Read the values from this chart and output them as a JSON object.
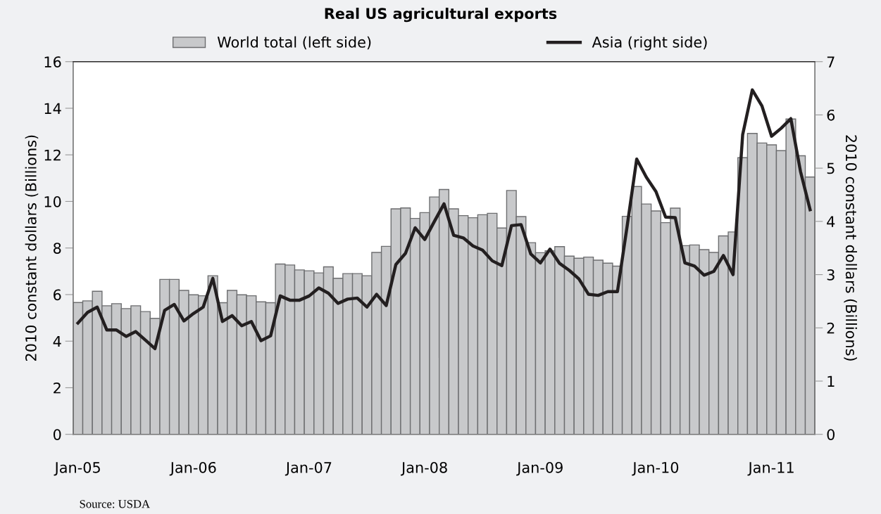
{
  "chart_data": {
    "type": "bar",
    "title": "Real US agricultural exports",
    "ylabel": "2010 constant dollars (Billions)",
    "y2label": "2010 constant dollars (Billions)",
    "annotations": [
      "Source: USDA"
    ],
    "categories": [
      "Jan-05",
      null,
      null,
      null,
      null,
      null,
      null,
      null,
      null,
      null,
      null,
      null,
      "Jan-06",
      null,
      null,
      null,
      null,
      null,
      null,
      null,
      null,
      null,
      null,
      null,
      "Jan-07",
      null,
      null,
      null,
      null,
      null,
      null,
      null,
      null,
      null,
      null,
      null,
      "Jan-08",
      null,
      null,
      null,
      null,
      null,
      null,
      null,
      null,
      null,
      null,
      null,
      "Jan-09",
      null,
      null,
      null,
      null,
      null,
      null,
      null,
      null,
      null,
      null,
      null,
      "Jan-10",
      null,
      null,
      null,
      null,
      null,
      null,
      null,
      null,
      null,
      null,
      null,
      "Jan-11",
      null,
      null,
      null,
      null
    ],
    "series": [
      {
        "name": "World total (left side)",
        "color": "#c8c9cb",
        "values": [
          5.66,
          5.73,
          6.14,
          5.52,
          5.61,
          5.4,
          5.52,
          5.27,
          4.98,
          6.65,
          6.65,
          6.18,
          5.99,
          5.95,
          6.81,
          5.65,
          6.18,
          5.99,
          5.95,
          5.69,
          5.65,
          7.31,
          7.27,
          7.06,
          7.02,
          6.93,
          7.19,
          6.7,
          6.9,
          6.9,
          6.81,
          7.81,
          8.07,
          9.68,
          9.72,
          9.27,
          9.52,
          10.19,
          10.51,
          9.68,
          9.39,
          9.3,
          9.43,
          9.49,
          8.86,
          10.47,
          9.35,
          8.23,
          7.8,
          7.88,
          8.06,
          7.65,
          7.56,
          7.61,
          7.48,
          7.35,
          7.22,
          9.36,
          10.64,
          9.89,
          9.59,
          9.09,
          9.71,
          8.1,
          8.13,
          7.93,
          7.81,
          8.52,
          8.69,
          11.88,
          12.92,
          12.51,
          12.43,
          12.18,
          13.54,
          11.96,
          11.05
        ]
      },
      {
        "name": "Asia (right side)",
        "type": "line",
        "axis": "y2",
        "color": "#231f20",
        "values": [
          2.09,
          2.29,
          2.39,
          1.96,
          1.96,
          1.84,
          1.93,
          1.77,
          1.61,
          2.33,
          2.44,
          2.13,
          2.27,
          2.39,
          2.93,
          2.12,
          2.23,
          2.04,
          2.12,
          1.76,
          1.85,
          2.6,
          2.52,
          2.52,
          2.6,
          2.75,
          2.65,
          2.46,
          2.54,
          2.56,
          2.39,
          2.63,
          2.42,
          3.19,
          3.4,
          3.88,
          3.66,
          4.0,
          4.33,
          3.74,
          3.69,
          3.54,
          3.46,
          3.26,
          3.17,
          3.92,
          3.94,
          3.39,
          3.22,
          3.48,
          3.21,
          3.08,
          2.92,
          2.63,
          2.61,
          2.68,
          2.68,
          3.9,
          5.17,
          4.83,
          4.56,
          4.08,
          4.07,
          3.22,
          3.16,
          2.99,
          3.06,
          3.36,
          3.0,
          5.63,
          6.47,
          6.17,
          5.6,
          5.75,
          5.93,
          4.94,
          4.22
        ]
      }
    ],
    "ylim": [
      0,
      16
    ],
    "yticks": [
      0,
      2,
      4,
      6,
      8,
      10,
      12,
      14,
      16
    ],
    "y2lim": [
      0,
      7
    ],
    "y2ticks": [
      0,
      1,
      2,
      3,
      4,
      5,
      6,
      7
    ],
    "grid": false,
    "legend": "top",
    "marker": "none",
    "line_style": "solid"
  }
}
